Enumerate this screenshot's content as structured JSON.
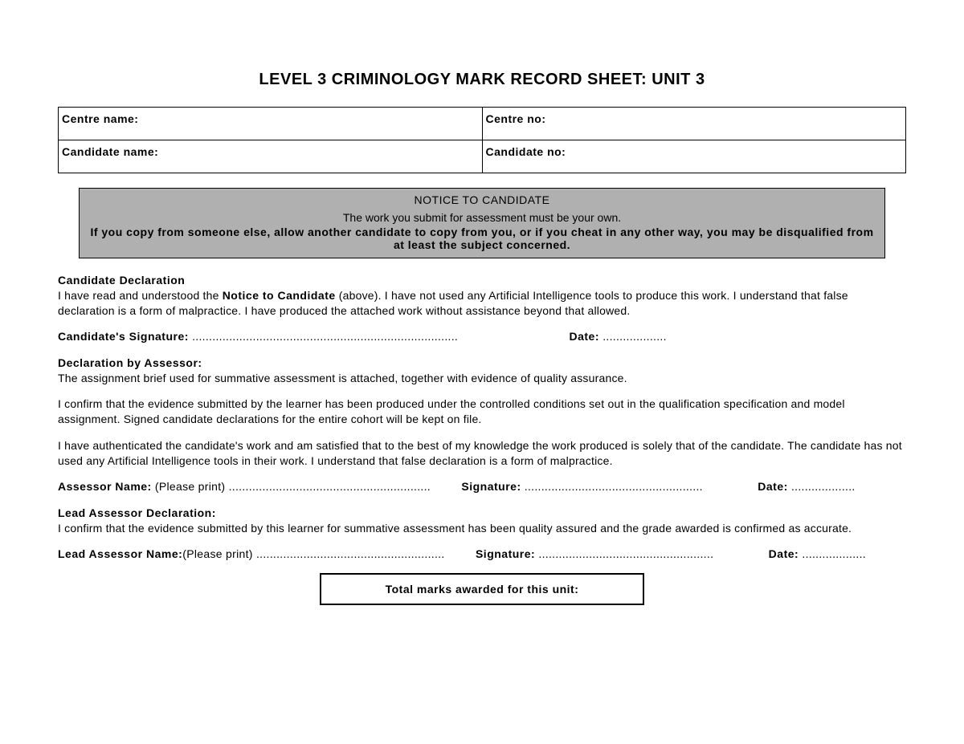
{
  "title": "LEVEL 3 CRIMINOLOGY MARK RECORD SHEET: UNIT 3",
  "header": {
    "centre_name_label": "Centre name:",
    "centre_no_label": "Centre no:",
    "candidate_name_label": "Candidate name:",
    "candidate_no_label": "Candidate no:"
  },
  "notice": {
    "title": "NOTICE TO CANDIDATE",
    "line1": "The work you submit for assessment must be your own.",
    "line2": "If you copy from someone else, allow another candidate to copy from you, or if you cheat in any other way, you may be disqualified from at least the subject concerned."
  },
  "candidate_declaration": {
    "heading": "Candidate Declaration",
    "text_pre": "I have read and understood the ",
    "text_bold": "Notice to Candidate",
    "text_post": " (above). I have not used any Artificial Intelligence tools to produce this work. I understand that false declaration is a form of malpractice. I have produced the attached work without assistance beyond that allowed.",
    "sig_label": "Candidate's Signature:",
    "date_label": "Date:"
  },
  "assessor_declaration": {
    "heading": "Declaration by Assessor:",
    "p1": "The assignment brief used for summative assessment is attached, together with evidence of quality assurance.",
    "p2": "I confirm that the evidence submitted by the learner has been produced under the controlled conditions set out in the qualification specification and model assignment. Signed candidate declarations for the entire cohort will be kept on file.",
    "p3": "I have authenticated the candidate's work and am satisfied that to the best of my knowledge the work produced is solely that of the candidate. The candidate has not used any Artificial Intelligence tools in their work. I understand that false declaration is a form of malpractice.",
    "name_label": "Assessor Name:",
    "please_print": " (Please print)",
    "sig_label": "Signature:",
    "date_label": "Date:"
  },
  "lead_assessor": {
    "heading": "Lead Assessor Declaration:",
    "p1": "I confirm that the evidence submitted by this learner for summative assessment has been quality assured and the grade awarded is confirmed as accurate.",
    "name_label": "Lead Assessor Name:",
    "please_print": "(Please print)",
    "sig_label": "Signature:",
    "date_label": "Date:"
  },
  "total_box": "Total marks awarded for this unit:"
}
